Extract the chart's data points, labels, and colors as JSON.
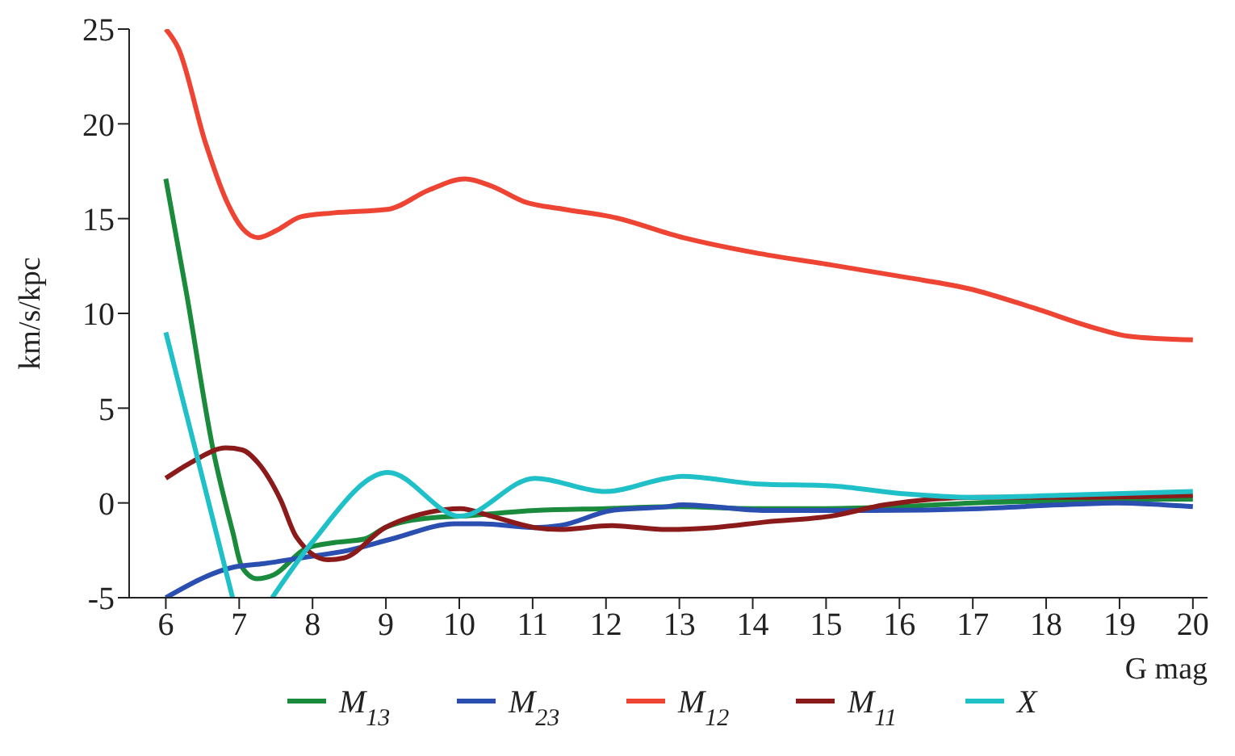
{
  "chart_data": {
    "type": "line",
    "xlabel": "G mag",
    "ylabel": "km/s/kpc",
    "xlim": [
      5.5,
      20.2
    ],
    "xticks": [
      6,
      7,
      8,
      9,
      10,
      11,
      12,
      13,
      14,
      15,
      16,
      17,
      18,
      19,
      20
    ],
    "ylim": [
      -5,
      25
    ],
    "yticks": [
      -5,
      0,
      5,
      10,
      15,
      20,
      25
    ],
    "grid": false,
    "legend": "bottom",
    "marker": "none",
    "line_style": "solid",
    "series": [
      {
        "name": "M$_{13}$",
        "color": "#1a8a3c",
        "x": [
          6,
          6.28,
          6.65,
          6.91,
          7.04,
          7.24,
          7.47,
          7.91,
          8.28,
          8.71,
          8.99,
          9.58,
          10.01,
          11.03,
          12,
          13,
          14,
          15,
          16,
          17,
          18,
          19,
          20
        ],
        "values": [
          17.1,
          11.1,
          2.7,
          -1.5,
          -3.4,
          -4.0,
          -3.8,
          -2.4,
          -2.1,
          -1.9,
          -1.3,
          -0.8,
          -0.7,
          -0.4,
          -0.3,
          -0.2,
          -0.3,
          -0.3,
          -0.2,
          0,
          0.1,
          0.2,
          0.2
        ]
      },
      {
        "name": "M$_{23}$",
        "color": "#2a4fb0",
        "x": [
          6,
          6.91,
          7.34,
          7.84,
          8.49,
          9.08,
          9.94,
          10.29,
          11.03,
          11.37,
          12.08,
          12.83,
          13.04,
          14.19,
          15.64,
          17.1,
          18.18,
          18.96,
          20
        ],
        "values": [
          -5,
          -3.4,
          -3.2,
          -2.9,
          -2.5,
          -1.9,
          -1.1,
          -1.1,
          -1.3,
          -1.2,
          -0.4,
          -0.2,
          -0.1,
          -0.4,
          -0.4,
          -0.3,
          -0.1,
          0,
          -0.2
        ]
      },
      {
        "name": "M$_{12}$",
        "color": "#ee4433",
        "x": [
          6,
          6.17,
          6.54,
          6.82,
          7.04,
          7.26,
          7.52,
          7.84,
          8.28,
          9.04,
          9.58,
          10.08,
          10.45,
          10.88,
          11.42,
          12.07,
          13.05,
          14.03,
          15.0,
          16.09,
          16.95,
          17.82,
          18.69,
          19.12,
          20
        ],
        "values": [
          25,
          24,
          19,
          16,
          14.5,
          14,
          14.4,
          15.1,
          15.3,
          15.5,
          16.5,
          17.1,
          16.7,
          15.9,
          15.5,
          15.1,
          14,
          13.2,
          12.6,
          11.9,
          11.3,
          10.3,
          9.2,
          8.8,
          8.6
        ]
      },
      {
        "name": "M$_{11}$",
        "color": "#8b1a1a",
        "x": [
          6,
          6.33,
          6.82,
          7.04,
          7.26,
          7.56,
          7.78,
          8.21,
          8.43,
          8.99,
          9.58,
          10.01,
          10.44,
          11.03,
          11.37,
          12.08,
          12.83,
          13.48,
          14.19,
          15.06,
          15.8,
          17.1,
          18.53,
          20
        ],
        "values": [
          1.3,
          2.1,
          2.9,
          2.8,
          2.1,
          0.2,
          -1.8,
          -3.0,
          -2.9,
          -1.3,
          -0.5,
          -0.3,
          -0.7,
          -1.3,
          -1.4,
          -1.2,
          -1.4,
          -1.3,
          -1.0,
          -0.7,
          -0.1,
          0.3,
          0.3,
          0.4
        ]
      },
      {
        "name": "X",
        "color": "#1fc0c8",
        "x": [
          6,
          6.91,
          7.2,
          7.45,
          7.99,
          9.03,
          10.01,
          11.03,
          11.99,
          12.83,
          13.04,
          14.06,
          15.06,
          16.01,
          17.01,
          18.18,
          20
        ],
        "values": [
          9.0,
          -5,
          null,
          -5,
          -2.1,
          1.6,
          -0.7,
          1.3,
          0.6,
          1.3,
          1.4,
          1.0,
          0.9,
          0.5,
          0.3,
          0.4,
          0.6
        ]
      }
    ]
  }
}
